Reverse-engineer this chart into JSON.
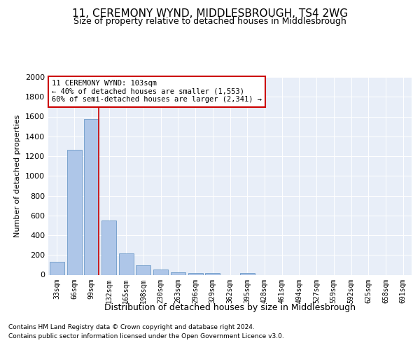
{
  "title": "11, CEREMONY WYND, MIDDLESBROUGH, TS4 2WG",
  "subtitle": "Size of property relative to detached houses in Middlesbrough",
  "xlabel": "Distribution of detached houses by size in Middlesbrough",
  "ylabel": "Number of detached properties",
  "footnote1": "Contains HM Land Registry data © Crown copyright and database right 2024.",
  "footnote2": "Contains public sector information licensed under the Open Government Licence v3.0.",
  "bins": [
    "33sqm",
    "66sqm",
    "99sqm",
    "132sqm",
    "165sqm",
    "198sqm",
    "230sqm",
    "263sqm",
    "296sqm",
    "329sqm",
    "362sqm",
    "395sqm",
    "428sqm",
    "461sqm",
    "494sqm",
    "527sqm",
    "559sqm",
    "592sqm",
    "625sqm",
    "658sqm",
    "691sqm"
  ],
  "bar_values": [
    130,
    1265,
    1575,
    550,
    215,
    95,
    50,
    25,
    15,
    15,
    0,
    15,
    0,
    0,
    0,
    0,
    0,
    0,
    0,
    0,
    0
  ],
  "bar_color": "#aec6e8",
  "bar_edge_color": "#5b8ec0",
  "annotation_line1": "11 CEREMONY WYND: 103sqm",
  "annotation_line2": "← 40% of detached houses are smaller (1,553)",
  "annotation_line3": "60% of semi-detached houses are larger (2,341) →",
  "annotation_box_color": "#ffffff",
  "annotation_box_edge": "#cc0000",
  "property_line_color": "#cc0000",
  "property_line_x": 2.43,
  "ylim": [
    0,
    2000
  ],
  "yticks": [
    0,
    200,
    400,
    600,
    800,
    1000,
    1200,
    1400,
    1600,
    1800,
    2000
  ],
  "plot_bg": "#e8eef8",
  "grid_color": "#ffffff",
  "title_fontsize": 11,
  "subtitle_fontsize": 9,
  "xlabel_fontsize": 9,
  "ylabel_fontsize": 8,
  "footnote_fontsize": 6.5
}
